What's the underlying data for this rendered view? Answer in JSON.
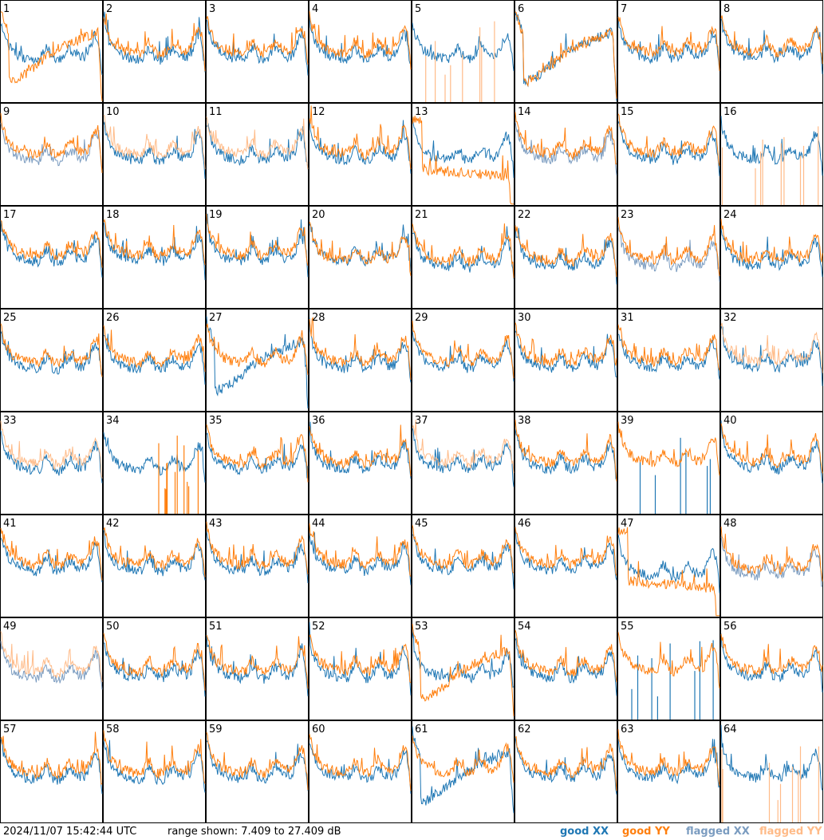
{
  "footer": {
    "timestamp": "2024/11/07 15:42:44 UTC",
    "range_text": "range shown: 7.409 to 27.409 dB"
  },
  "legend": [
    {
      "key": "good_xx",
      "word": "good",
      "pol": "XX",
      "color": "#1f77b4"
    },
    {
      "key": "good_yy",
      "word": "good",
      "pol": "YY",
      "color": "#ff7f0e"
    },
    {
      "key": "flagged_xx",
      "word": "flagged",
      "pol": "XX",
      "color": "#7b9cc0"
    },
    {
      "key": "flagged_yy",
      "word": "flagged",
      "pol": "YY",
      "color": "#ffbb88"
    }
  ],
  "chart_data": {
    "type": "line",
    "layout": "small-multiples",
    "rows": 8,
    "cols": 8,
    "ylim": [
      7.409,
      27.409
    ],
    "yunit": "dB",
    "panel_labels": [
      "1",
      "2",
      "3",
      "4",
      "5",
      "6",
      "7",
      "8",
      "9",
      "10",
      "11",
      "12",
      "13",
      "14",
      "15",
      "16",
      "17",
      "18",
      "19",
      "20",
      "21",
      "22",
      "23",
      "24",
      "25",
      "26",
      "27",
      "28",
      "29",
      "30",
      "31",
      "32",
      "33",
      "34",
      "35",
      "36",
      "37",
      "38",
      "39",
      "40",
      "41",
      "42",
      "43",
      "44",
      "45",
      "46",
      "47",
      "48",
      "49",
      "50",
      "51",
      "52",
      "53",
      "54",
      "55",
      "56",
      "57",
      "58",
      "59",
      "60",
      "61",
      "62",
      "63",
      "64"
    ],
    "flagged_xx_panels": [
      9,
      14,
      23,
      48,
      49
    ],
    "flagged_yy_panels": [
      5,
      10,
      11,
      16,
      32,
      33,
      37,
      49,
      64
    ],
    "special_xx": {
      "5": "normal",
      "6": "dip",
      "27": "dip",
      "39": "spikes",
      "55": "spikes",
      "61": "dip",
      "13": "normal",
      "34": "normal"
    },
    "special_yy": {
      "1": "dip",
      "6": "dip",
      "13": "decay",
      "34": "spikes",
      "47": "decay",
      "53": "dip",
      "5": "spikes",
      "16": "spikes",
      "64": "spikes"
    },
    "series": [
      {
        "name": "good XX",
        "color": "#1f77b4"
      },
      {
        "name": "good YY",
        "color": "#ff7f0e"
      },
      {
        "name": "flagged XX",
        "color": "#7b9cc0"
      },
      {
        "name": "flagged YY",
        "color": "#ffbb88"
      }
    ]
  }
}
